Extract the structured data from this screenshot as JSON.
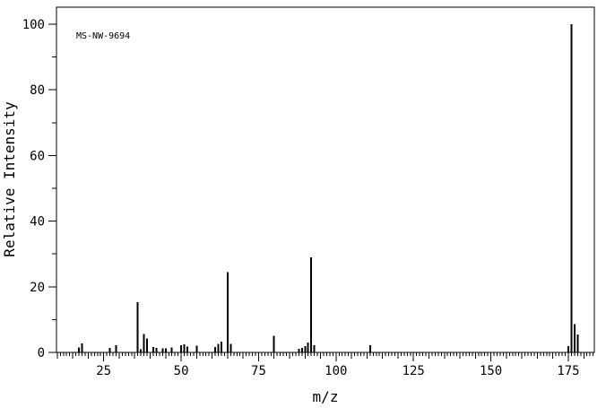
{
  "page": {
    "background_color": "#ffffff",
    "foreground_color": "#000000"
  },
  "annotation": {
    "spectrum_id": "MS-NW-9694"
  },
  "chart_data": {
    "type": "bar",
    "subtype": "mass-spectrum-stick-plot",
    "title": "",
    "xlabel": "m/z",
    "ylabel": "Relative Intensity",
    "xlim": [
      9.75,
      183.4
    ],
    "ylim": [
      0,
      105.2
    ],
    "x_major_ticks": [
      25,
      50,
      75,
      100,
      125,
      150,
      175
    ],
    "x_medium_tick_interval": 5,
    "x_minor_tick_interval": 1,
    "y_major_ticks": [
      0,
      20,
      40,
      60,
      80,
      100
    ],
    "y_minor_tick_interval": 10,
    "grid": false,
    "legend": false,
    "line_color": "#000000",
    "peaks": [
      [
        17,
        1.5
      ],
      [
        18,
        2.8
      ],
      [
        27,
        1.4
      ],
      [
        29,
        2.2
      ],
      [
        36,
        15.3
      ],
      [
        37,
        1.0
      ],
      [
        38,
        5.6
      ],
      [
        39,
        4.2
      ],
      [
        41,
        1.7
      ],
      [
        42,
        1.3
      ],
      [
        44,
        1.2
      ],
      [
        45,
        1.2
      ],
      [
        47,
        1.5
      ],
      [
        50,
        2.2
      ],
      [
        51,
        2.4
      ],
      [
        52,
        1.8
      ],
      [
        55,
        2.0
      ],
      [
        61,
        1.7
      ],
      [
        62,
        2.6
      ],
      [
        63,
        3.3
      ],
      [
        65,
        24.5
      ],
      [
        66,
        2.6
      ],
      [
        80,
        5.0
      ],
      [
        88,
        1.1
      ],
      [
        89,
        1.4
      ],
      [
        90,
        1.9
      ],
      [
        91,
        3.0
      ],
      [
        92,
        29.0
      ],
      [
        93,
        2.2
      ],
      [
        111,
        2.2
      ],
      [
        175,
        1.9
      ],
      [
        176,
        100.0
      ],
      [
        177,
        8.6
      ],
      [
        178,
        5.4
      ]
    ],
    "base_peak": {
      "mz": 176,
      "intensity": 100.0
    }
  }
}
